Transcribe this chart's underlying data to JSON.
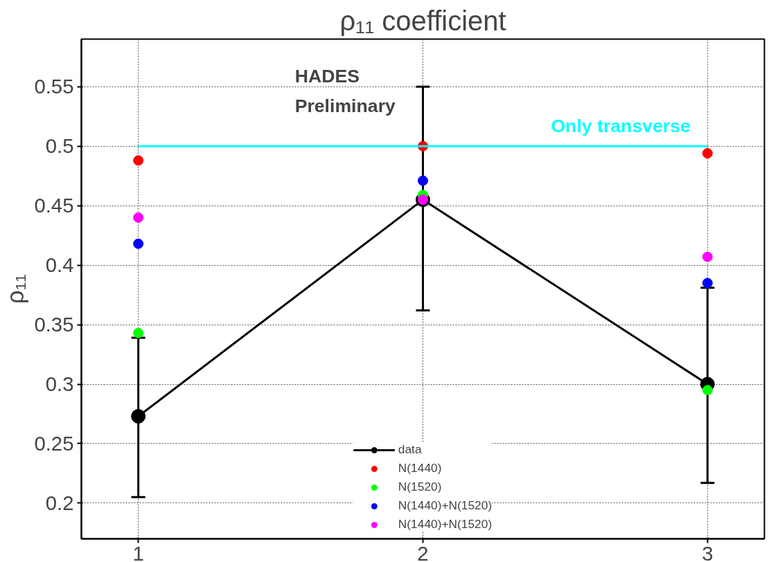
{
  "chart_data": {
    "type": "scatter",
    "title": "ρ₁₁ coefficient",
    "ylabel": "ρ₁₁",
    "annotations": [
      "HADES\nPreliminary"
    ],
    "x": [
      1,
      2,
      3
    ],
    "xlim": [
      0.8,
      3.2
    ],
    "ylim": [
      0.17,
      0.59
    ],
    "xticks": [
      1,
      2,
      3
    ],
    "yticks": [
      0.2,
      0.25,
      0.3,
      0.35,
      0.4,
      0.45,
      0.5,
      0.55
    ],
    "grid": true,
    "legend": "bottom",
    "marker": "circle",
    "series": [
      {
        "name": "data",
        "type": "line",
        "color": "#000000",
        "values": [
          0.273,
          0.455,
          0.3
        ],
        "errors": [
          [
            0.205,
            0.339
          ],
          [
            0.362,
            0.55
          ],
          [
            0.217,
            0.381
          ]
        ]
      },
      {
        "name": "N(1440)",
        "color": "#ff0000",
        "values": [
          0.488,
          0.5,
          0.494
        ]
      },
      {
        "name": "N(1520)",
        "color": "#00ff00",
        "values": [
          0.343,
          0.459,
          0.295
        ]
      },
      {
        "name": "N(1440)+N(1520)",
        "color": "#0000ff",
        "values": [
          0.418,
          0.471,
          0.385
        ]
      },
      {
        "name": "N(1440)+N(1520)",
        "color": "#ff00ff",
        "values": [
          0.44,
          0.455,
          0.407
        ]
      },
      {
        "name": "Only transverse",
        "type": "line",
        "marker": "none",
        "color": "#00ffff",
        "x": [
          1,
          3
        ],
        "values": [
          0.5,
          0.5
        ]
      }
    ]
  }
}
